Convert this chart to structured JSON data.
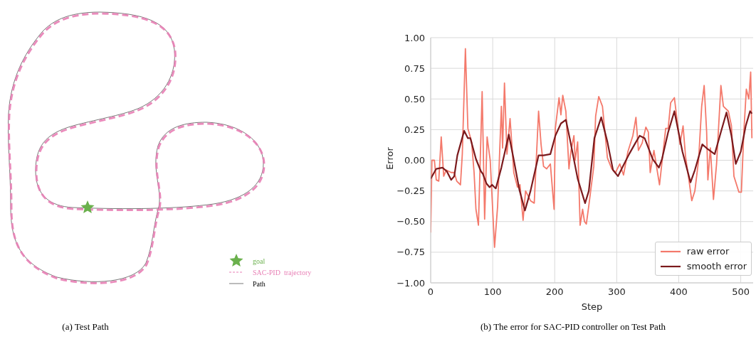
{
  "chart_data": [
    {
      "type": "other",
      "title": "(a) Test Path",
      "annotations": [
        "goal",
        "SAC-PID  trajectory",
        "Path"
      ]
    },
    {
      "type": "line",
      "title": "(b) The error for SAC-PID controller on Test Path",
      "xlabel": "Step",
      "ylabel": "Error",
      "xlim": [
        0,
        520
      ],
      "xticks": [
        0,
        100,
        200,
        300,
        400,
        500
      ],
      "ylim": [
        -1,
        1
      ],
      "yticks": [
        {
          "value": -1,
          "label": "−1.00"
        },
        {
          "value": -0.75,
          "label": "−0.75"
        },
        {
          "value": -0.5,
          "label": "−0.50"
        },
        {
          "value": -0.25,
          "label": "−0.25"
        },
        {
          "value": 0,
          "label": "0.00"
        },
        {
          "value": 0.25,
          "label": "0.25"
        },
        {
          "value": 0.5,
          "label": "0.50"
        },
        {
          "value": 0.75,
          "label": "0.75"
        },
        {
          "value": 1,
          "label": "1.00"
        }
      ],
      "grid": true,
      "legend": "bottom right",
      "line_style": "solid",
      "marker": "none",
      "series": [
        {
          "name": "raw error",
          "color": "#f4796b",
          "x": [
            0,
            2,
            6,
            9,
            13,
            17,
            21,
            25,
            33,
            38,
            42,
            48,
            51,
            56,
            60,
            66,
            70,
            73,
            77,
            83,
            87,
            91,
            96,
            103,
            108,
            114,
            116,
            119,
            123,
            128,
            134,
            140,
            144,
            149,
            153,
            161,
            167,
            174,
            178,
            182,
            187,
            193,
            199,
            201,
            207,
            210,
            213,
            218,
            223,
            226,
            231,
            233,
            237,
            241,
            245,
            248,
            251,
            255,
            263,
            266,
            271,
            277,
            285,
            292,
            298,
            305,
            311,
            318,
            326,
            331,
            335,
            341,
            347,
            351,
            354,
            360,
            369,
            379,
            383,
            387,
            393,
            398,
            402,
            407,
            411,
            417,
            421,
            426,
            432,
            437,
            441,
            445,
            447,
            451,
            456,
            461,
            468,
            472,
            480,
            485,
            489,
            497,
            501,
            505,
            509,
            513,
            516,
            518
          ],
          "values": [
            -0.59,
            0.0,
            0.0,
            -0.16,
            -0.17,
            0.19,
            -0.13,
            -0.08,
            -0.1,
            -0.1,
            -0.17,
            -0.2,
            0.05,
            0.91,
            0.26,
            0.15,
            -0.1,
            -0.4,
            -0.53,
            0.56,
            -0.48,
            0.19,
            0.0,
            -0.71,
            -0.37,
            0.44,
            0.1,
            0.63,
            0.05,
            0.34,
            -0.1,
            -0.22,
            -0.2,
            -0.49,
            -0.25,
            -0.33,
            -0.35,
            0.4,
            0.13,
            -0.05,
            -0.07,
            -0.03,
            -0.4,
            0.26,
            0.51,
            0.37,
            0.53,
            0.4,
            -0.07,
            0.07,
            0.2,
            0.0,
            0.15,
            -0.53,
            -0.4,
            -0.5,
            -0.52,
            -0.37,
            -0.05,
            0.36,
            0.52,
            0.44,
            0.02,
            -0.07,
            -0.1,
            -0.03,
            -0.12,
            0.07,
            0.2,
            0.35,
            0.08,
            0.14,
            0.27,
            0.23,
            -0.1,
            0.08,
            -0.2,
            0.26,
            0.26,
            0.47,
            0.51,
            0.3,
            0.13,
            0.28,
            0.03,
            -0.18,
            -0.33,
            -0.25,
            0.0,
            0.44,
            0.61,
            0.23,
            -0.16,
            0.1,
            -0.32,
            -0.03,
            0.61,
            0.44,
            0.4,
            0.28,
            -0.13,
            -0.26,
            -0.26,
            0.23,
            0.58,
            0.5,
            0.72,
            0.18
          ]
        },
        {
          "name": "smooth error",
          "color": "#7b1a1d",
          "x": [
            0,
            9,
            19,
            26,
            33,
            38,
            43,
            54,
            60,
            64,
            73,
            81,
            84,
            90,
            95,
            99,
            105,
            114,
            126,
            133,
            143,
            152,
            161,
            174,
            182,
            193,
            201,
            210,
            218,
            225,
            237,
            249,
            255,
            264,
            275,
            285,
            294,
            302,
            309,
            320,
            330,
            337,
            345,
            358,
            368,
            373,
            383,
            393,
            406,
            419,
            426,
            438,
            447,
            458,
            468,
            477,
            485,
            492,
            500,
            508,
            515,
            518
          ],
          "values": [
            -0.15,
            -0.07,
            -0.06,
            -0.09,
            -0.16,
            -0.13,
            0.04,
            0.24,
            0.18,
            0.18,
            0.01,
            -0.09,
            -0.11,
            -0.19,
            -0.22,
            -0.2,
            -0.23,
            -0.06,
            0.21,
            0.03,
            -0.24,
            -0.41,
            -0.25,
            0.04,
            0.04,
            0.05,
            0.2,
            0.3,
            0.33,
            0.16,
            -0.15,
            -0.35,
            -0.25,
            0.18,
            0.35,
            0.15,
            -0.08,
            -0.13,
            -0.06,
            0.05,
            0.14,
            0.2,
            0.18,
            0.01,
            -0.06,
            0.01,
            0.23,
            0.4,
            0.07,
            -0.18,
            -0.08,
            0.13,
            0.09,
            0.05,
            0.23,
            0.39,
            0.2,
            -0.03,
            0.07,
            0.28,
            0.4,
            0.38
          ]
        }
      ]
    }
  ]
}
